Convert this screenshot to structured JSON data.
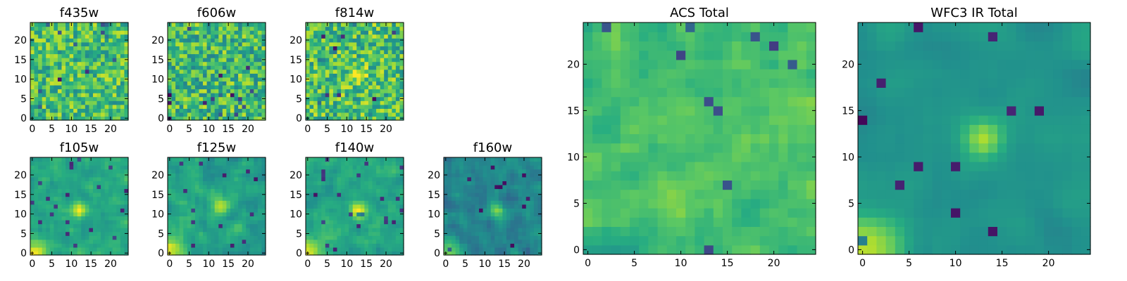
{
  "chart_data": [
    {
      "type": "heatmap",
      "title": "f435w",
      "x_range": [
        0,
        24
      ],
      "y_range": [
        0,
        24
      ],
      "x_ticks": [
        0,
        5,
        10,
        15,
        20
      ],
      "y_ticks": [
        0,
        5,
        10,
        15,
        20
      ],
      "colormap": "viridis",
      "hotspot": null,
      "seed": 11,
      "texture": 0.6,
      "smooth": 0,
      "gradient": "none",
      "mean": 0.7,
      "spread": 0.14
    },
    {
      "type": "heatmap",
      "title": "f606w",
      "x_range": [
        0,
        24
      ],
      "y_range": [
        0,
        24
      ],
      "x_ticks": [
        0,
        5,
        10,
        15,
        20
      ],
      "y_ticks": [
        0,
        5,
        10,
        15,
        20
      ],
      "colormap": "viridis",
      "hotspot": null,
      "seed": 23,
      "texture": 0.6,
      "smooth": 0,
      "gradient": "none",
      "mean": 0.68,
      "spread": 0.15
    },
    {
      "type": "heatmap",
      "title": "f814w",
      "x_range": [
        0,
        24
      ],
      "y_range": [
        0,
        24
      ],
      "x_ticks": [
        0,
        5,
        10,
        15,
        20
      ],
      "y_ticks": [
        0,
        5,
        10,
        15,
        20
      ],
      "colormap": "viridis",
      "hotspot": [
        13,
        11
      ],
      "seed": 37,
      "texture": 0.6,
      "smooth": 0,
      "gradient": "none",
      "mean": 0.7,
      "spread": 0.15
    },
    {
      "type": "heatmap",
      "title": "f105w",
      "x_range": [
        0,
        24
      ],
      "y_range": [
        0,
        24
      ],
      "x_ticks": [
        0,
        5,
        10,
        15,
        20
      ],
      "y_ticks": [
        0,
        5,
        10,
        15,
        20
      ],
      "colormap": "viridis",
      "hotspot": [
        12,
        11
      ],
      "seed": 41,
      "texture": 0.5,
      "smooth": 1,
      "gradient": "bottom-left",
      "mean": 0.6,
      "spread": 0.14
    },
    {
      "type": "heatmap",
      "title": "f125w",
      "x_range": [
        0,
        24
      ],
      "y_range": [
        0,
        24
      ],
      "x_ticks": [
        0,
        5,
        10,
        15,
        20
      ],
      "y_ticks": [
        0,
        5,
        10,
        15,
        20
      ],
      "colormap": "viridis",
      "hotspot": [
        13,
        12
      ],
      "seed": 53,
      "texture": 0.5,
      "smooth": 1,
      "gradient": "bottom-left",
      "mean": 0.58,
      "spread": 0.15
    },
    {
      "type": "heatmap",
      "title": "f140w",
      "x_range": [
        0,
        24
      ],
      "y_range": [
        0,
        24
      ],
      "x_ticks": [
        0,
        5,
        10,
        15,
        20
      ],
      "y_ticks": [
        0,
        5,
        10,
        15,
        20
      ],
      "colormap": "viridis",
      "hotspot": [
        13,
        11
      ],
      "seed": 67,
      "texture": 0.5,
      "smooth": 1,
      "gradient": "bottom-left",
      "mean": 0.6,
      "spread": 0.14
    },
    {
      "type": "heatmap",
      "title": "f160w",
      "x_range": [
        0,
        24
      ],
      "y_range": [
        0,
        24
      ],
      "x_ticks": [
        0,
        5,
        10,
        15,
        20
      ],
      "y_ticks": [
        0,
        5,
        10,
        15,
        20
      ],
      "colormap": "viridis",
      "hotspot": [
        13,
        11
      ],
      "seed": 79,
      "texture": 0.5,
      "smooth": 1,
      "gradient": "bottom-left",
      "mean": 0.46,
      "spread": 0.15
    },
    {
      "type": "heatmap",
      "title": "ACS Total",
      "x_range": [
        0,
        24
      ],
      "y_range": [
        0,
        24
      ],
      "x_ticks": [
        0,
        5,
        10,
        15,
        20
      ],
      "y_ticks": [
        0,
        5,
        10,
        15,
        20
      ],
      "colormap": "viridis",
      "hotspot": null,
      "seed": 97,
      "texture": 0.5,
      "smooth": 1,
      "gradient": "none",
      "mean": 0.7,
      "spread": 0.13
    },
    {
      "type": "heatmap",
      "title": "WFC3 IR Total",
      "x_range": [
        0,
        24
      ],
      "y_range": [
        0,
        24
      ],
      "x_ticks": [
        0,
        5,
        10,
        15,
        20
      ],
      "y_ticks": [
        0,
        5,
        10,
        15,
        20
      ],
      "colormap": "viridis",
      "hotspot": [
        13,
        12
      ],
      "seed": 113,
      "texture": 0.4,
      "smooth": 2,
      "gradient": "bottom-left",
      "mean": 0.52,
      "spread": 0.12
    }
  ]
}
